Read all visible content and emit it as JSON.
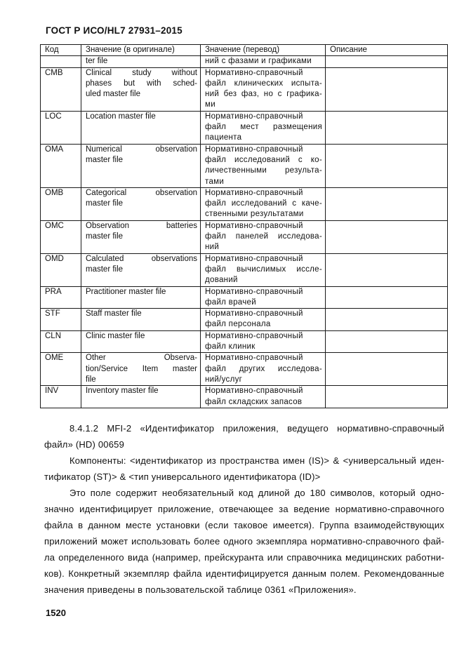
{
  "page": {
    "title": "ГОСТ Р ИСО/HL7 27931–2015",
    "page_number": "1520"
  },
  "table": {
    "headers": [
      "Код",
      "Значение (в оригинале)",
      "Значение (перевод)",
      "Описание"
    ],
    "rows": [
      {
        "code": "",
        "original": [
          "ter file"
        ],
        "translation": [
          "ний с фазами и графиками"
        ],
        "description": ""
      },
      {
        "code": "CMB",
        "original": [
          "Clinical study without",
          "phases but with sched-",
          "uled master file"
        ],
        "translation": [
          "Нормативно-справочный",
          "файл клинических испыта-",
          "ний без фаз, но с графика-",
          "ми"
        ],
        "description": ""
      },
      {
        "code": "LOC",
        "original": [
          "Location master file"
        ],
        "translation": [
          "Нормативно-справочный",
          "файл мест размещения",
          "пациента"
        ],
        "description": ""
      },
      {
        "code": "OMA",
        "original": [
          "Numerical observation",
          "master file"
        ],
        "translation": [
          "Нормативно-справочный",
          "файл исследований с ко-",
          "личественными результа-",
          "тами"
        ],
        "description": ""
      },
      {
        "code": "OMB",
        "original": [
          "Categorical observation",
          "master file"
        ],
        "translation": [
          "Нормативно-справочный",
          "файл исследований с каче-",
          "ственными результатами"
        ],
        "description": ""
      },
      {
        "code": "OMC",
        "original": [
          "Observation batteries",
          "master file"
        ],
        "translation": [
          "Нормативно-справочный",
          "файл панелей исследова-",
          "ний"
        ],
        "description": ""
      },
      {
        "code": "OMD",
        "original": [
          "Calculated observations",
          "master file"
        ],
        "translation": [
          "Нормативно-справочный",
          "файл вычислимых иссле-",
          "дований"
        ],
        "description": ""
      },
      {
        "code": "PRA",
        "original": [
          "Practitioner master file"
        ],
        "translation": [
          "Нормативно-справочный",
          "файл врачей"
        ],
        "description": ""
      },
      {
        "code": "STF",
        "original": [
          "Staff master file"
        ],
        "translation": [
          "Нормативно-справочный",
          "файл персонала"
        ],
        "description": ""
      },
      {
        "code": "CLN",
        "original": [
          "Clinic master file"
        ],
        "translation": [
          "Нормативно-справочный",
          "файл клиник"
        ],
        "description": ""
      },
      {
        "code": "OME",
        "original": [
          "Other Observa-",
          "tion/Service Item master",
          "file"
        ],
        "translation": [
          "Нормативно-справочный",
          "файл других исследова-",
          "ний/услуг"
        ],
        "description": ""
      },
      {
        "code": "INV",
        "original": [
          "Inventory master file"
        ],
        "translation": [
          "Нормативно-справочный",
          "файл складских запасов"
        ],
        "description": ""
      }
    ]
  },
  "paragraphs": [
    {
      "lines": [
        "8.4.1.2 MFI-2 «Идентификатор приложения, ведущего нормативно-справочный",
        "файл» (HD) 00659"
      ]
    },
    {
      "lines": [
        "Компоненты: <идентификатор из пространства имен (IS)> & <универсальный иден-",
        "тификатор (ST)> & <тип универсального идентификатора (ID)>"
      ]
    },
    {
      "lines": [
        "Это поле содержит необязательный код длиной до 180 символов, который одно-",
        "значно идентифицирует приложение, отвечающее за ведение нормативно-справочного",
        "файла в данном месте установки (если таковое имеется). Группа взаимодействующих",
        "приложений может использовать более одного экземпляра нормативно-справочного фай-",
        "ла определенного вида (например, прейскуранта или справочника медицинских работни-",
        "ков). Конкретный экземпляр файла идентифицируется данным полем. Рекомендованные",
        "значения приведены в пользовательской таблице 0361 «Приложения»."
      ]
    }
  ]
}
